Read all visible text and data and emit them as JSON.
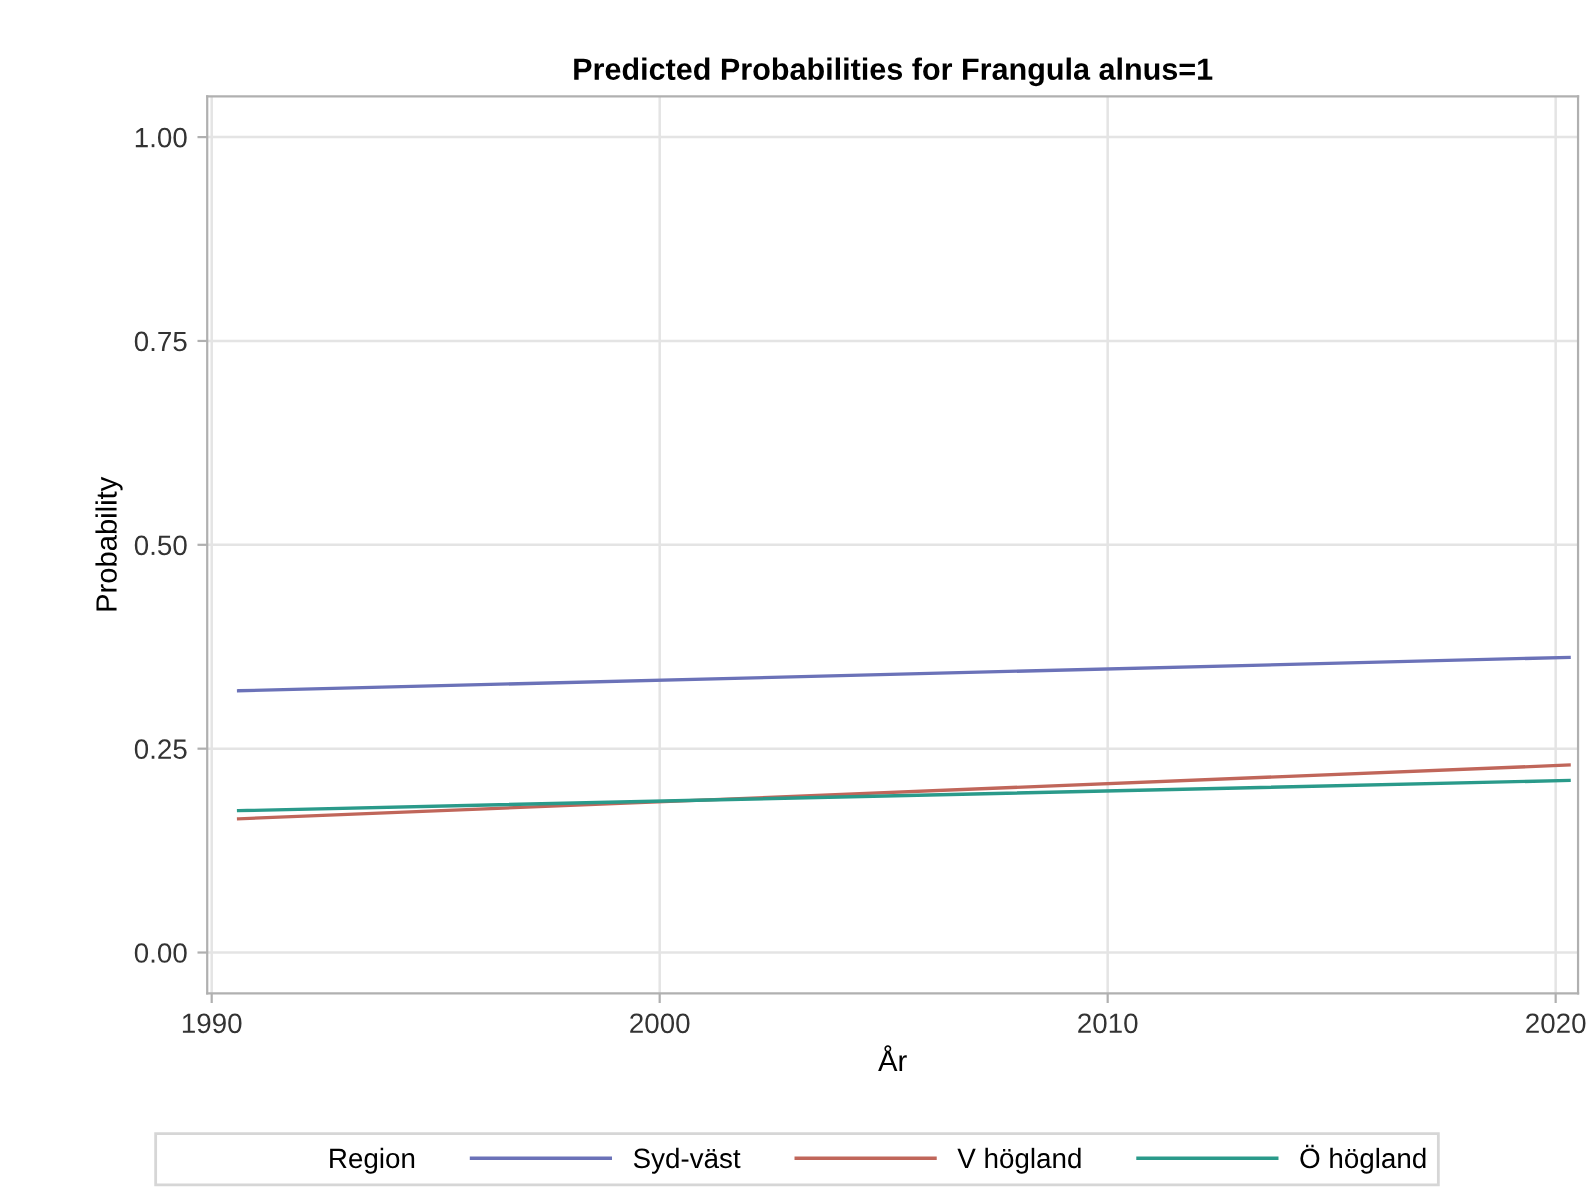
{
  "chart_data": {
    "type": "line",
    "title": "Predicted Probabilities for Frangula alnus=1",
    "xlabel": "År",
    "ylabel": "Probability",
    "legend_title": "Region",
    "x": [
      1990.6,
      2020.3
    ],
    "series": [
      {
        "name": "Syd-väst",
        "color": "#6b72b8",
        "values": [
          0.321,
          0.362
        ]
      },
      {
        "name": "V högland",
        "color": "#c0665a",
        "values": [
          0.164,
          0.23
        ]
      },
      {
        "name": "Ö högland",
        "color": "#2a9a8a",
        "values": [
          0.174,
          0.211
        ]
      }
    ],
    "xlim": [
      1989.9,
      2020.5
    ],
    "xticks": [
      1990,
      2000,
      2010,
      2020
    ],
    "ylim": [
      -0.05,
      1.05
    ],
    "yticks": [
      {
        "value": 0,
        "label": "0.00"
      },
      {
        "value": 0.25,
        "label": "0.25"
      },
      {
        "value": 0.5,
        "label": "0.50"
      },
      {
        "value": 0.75,
        "label": "0.75"
      },
      {
        "value": 1,
        "label": "1.00"
      }
    ],
    "grid": true,
    "legend": "bottom",
    "marker": "none",
    "line_style": "solid"
  }
}
